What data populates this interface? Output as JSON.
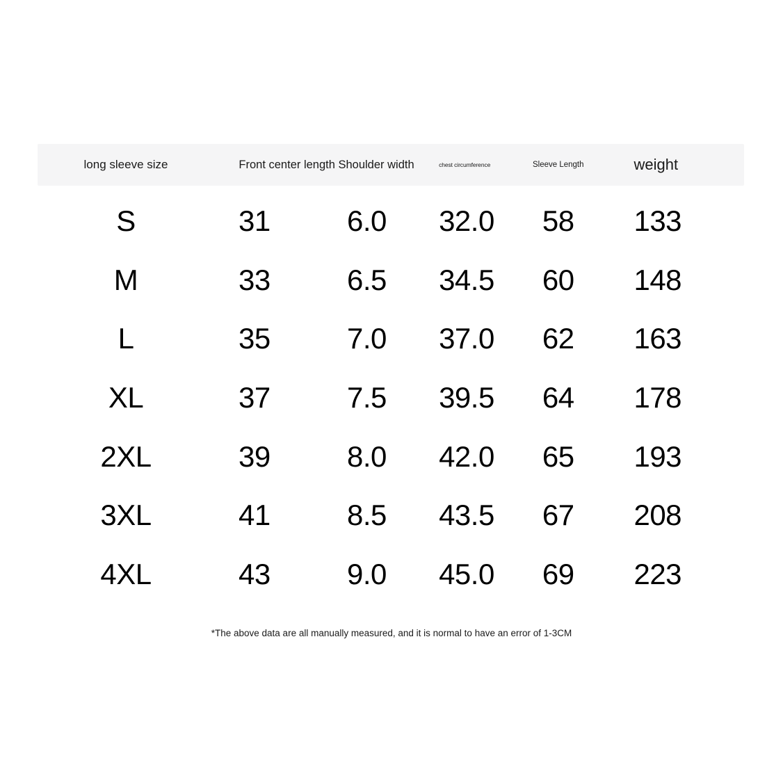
{
  "colors": {
    "header_band_bg": "#f5f5f6",
    "data_text": "#000000",
    "page_bg": "#ffffff"
  },
  "table": {
    "header": {
      "size_label": "long sleeve size",
      "front_center_shoulder_label": "Front center length Shoulder width",
      "chest_label": "chest circumference",
      "sleeve_label": "Sleeve Length",
      "weight_label": "weight"
    },
    "rows": [
      {
        "size": "S",
        "front_center_length": "31",
        "shoulder_width": "6.0",
        "chest_circumference": "32.0",
        "sleeve_length": "58",
        "weight": "133"
      },
      {
        "size": "M",
        "front_center_length": "33",
        "shoulder_width": "6.5",
        "chest_circumference": "34.5",
        "sleeve_length": "60",
        "weight": "148"
      },
      {
        "size": "L",
        "front_center_length": "35",
        "shoulder_width": "7.0",
        "chest_circumference": "37.0",
        "sleeve_length": "62",
        "weight": "163"
      },
      {
        "size": "XL",
        "front_center_length": "37",
        "shoulder_width": "7.5",
        "chest_circumference": "39.5",
        "sleeve_length": "64",
        "weight": "178"
      },
      {
        "size": "2XL",
        "front_center_length": "39",
        "shoulder_width": "8.0",
        "chest_circumference": "42.0",
        "sleeve_length": "65",
        "weight": "193"
      },
      {
        "size": "3XL",
        "front_center_length": "41",
        "shoulder_width": "8.5",
        "chest_circumference": "43.5",
        "sleeve_length": "67",
        "weight": "208"
      },
      {
        "size": "4XL",
        "front_center_length": "43",
        "shoulder_width": "9.0",
        "chest_circumference": "45.0",
        "sleeve_length": "69",
        "weight": "223"
      }
    ]
  },
  "footnote": "*The above data are all manually measured, and it is normal to have an error of 1-3CM",
  "chart_data": {
    "type": "table",
    "title": "long sleeve size chart",
    "columns": [
      "long sleeve size",
      "Front center length",
      "Shoulder width",
      "chest circumference",
      "Sleeve Length",
      "weight"
    ],
    "rows": [
      [
        "S",
        31,
        6.0,
        32.0,
        58,
        133
      ],
      [
        "M",
        33,
        6.5,
        34.5,
        60,
        148
      ],
      [
        "L",
        35,
        7.0,
        37.0,
        62,
        163
      ],
      [
        "XL",
        37,
        7.5,
        39.5,
        64,
        178
      ],
      [
        "2XL",
        39,
        8.0,
        42.0,
        65,
        193
      ],
      [
        "3XL",
        41,
        8.5,
        43.5,
        67,
        208
      ],
      [
        "4XL",
        43,
        9.0,
        45.0,
        69,
        223
      ]
    ],
    "annotations": [
      "*The above data are all manually measured, and it is normal to have an error of 1-3CM"
    ]
  }
}
